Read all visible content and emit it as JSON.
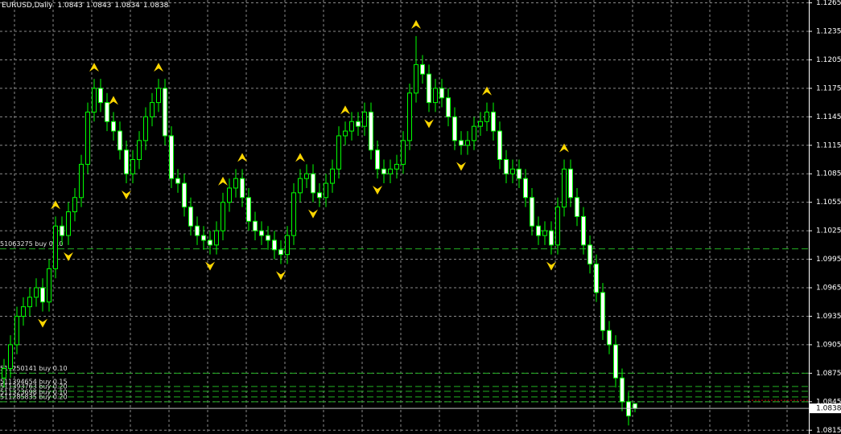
{
  "chart_data": {
    "type": "candlestick",
    "title": "EURUSD,Daily",
    "open": [
      1.087,
      1.088,
      1.0905,
      1.0935,
      1.0945,
      1.0955,
      1.0965,
      1.095,
      1.0985,
      1.103,
      1.102,
      1.1045,
      1.106,
      1.1095,
      1.115,
      1.1175,
      1.116,
      1.114,
      1.113,
      1.111,
      1.1085,
      1.11,
      1.112,
      1.1145,
      1.116,
      1.1175,
      1.1125,
      1.108,
      1.1075,
      1.105,
      1.103,
      1.102,
      1.1015,
      1.101,
      1.1025,
      1.1055,
      1.107,
      1.108,
      1.106,
      1.1035,
      1.1025,
      1.102,
      1.1015,
      1.1005,
      1.1,
      1.102,
      1.1065,
      1.108,
      1.1085,
      1.1065,
      1.106,
      1.1075,
      1.109,
      1.1125,
      1.113,
      1.114,
      1.1135,
      1.115,
      1.111,
      1.109,
      1.1085,
      1.109,
      1.1095,
      1.112,
      1.117,
      1.12,
      1.119,
      1.116,
      1.1175,
      1.1165,
      1.1145,
      1.112,
      1.1115,
      1.112,
      1.1135,
      1.114,
      1.115,
      1.113,
      1.11,
      1.1085,
      1.109,
      1.108,
      1.106,
      1.103,
      1.102,
      1.1025,
      1.101,
      1.105,
      1.109,
      1.106,
      1.104,
      1.101,
      1.099,
      1.096,
      1.092,
      1.0905,
      1.087,
      1.0845,
      1.0843
    ],
    "high": [
      1.089,
      1.0915,
      1.0945,
      1.0955,
      1.0965,
      1.0975,
      1.0975,
      1.0995,
      1.104,
      1.104,
      1.1055,
      1.107,
      1.1105,
      1.116,
      1.1185,
      1.1185,
      1.117,
      1.115,
      1.114,
      1.112,
      1.111,
      1.113,
      1.1155,
      1.117,
      1.1185,
      1.1185,
      1.1135,
      1.109,
      1.1085,
      1.106,
      1.104,
      1.103,
      1.1025,
      1.1035,
      1.1065,
      1.108,
      1.109,
      1.109,
      1.107,
      1.1045,
      1.1035,
      1.103,
      1.1025,
      1.1015,
      1.103,
      1.1075,
      1.109,
      1.1095,
      1.1095,
      1.1075,
      1.1085,
      1.11,
      1.1135,
      1.114,
      1.115,
      1.115,
      1.116,
      1.116,
      1.112,
      1.11,
      1.11,
      1.1105,
      1.113,
      1.118,
      1.123,
      1.121,
      1.12,
      1.1185,
      1.1185,
      1.1175,
      1.1155,
      1.113,
      1.113,
      1.1145,
      1.115,
      1.116,
      1.116,
      1.114,
      1.111,
      1.11,
      1.11,
      1.109,
      1.107,
      1.104,
      1.1035,
      1.1035,
      1.106,
      1.11,
      1.11,
      1.107,
      1.105,
      1.102,
      1.1,
      1.097,
      1.093,
      1.0915,
      1.088,
      1.0855,
      1.0843
    ],
    "low": [
      1.086,
      1.087,
      1.0895,
      1.0925,
      1.0935,
      1.0945,
      1.094,
      1.094,
      1.0975,
      1.101,
      1.101,
      1.1035,
      1.105,
      1.1085,
      1.114,
      1.115,
      1.113,
      1.112,
      1.11,
      1.1075,
      1.1075,
      1.109,
      1.111,
      1.1135,
      1.115,
      1.1115,
      1.107,
      1.1065,
      1.104,
      1.102,
      1.101,
      1.1005,
      1.1,
      1.1,
      1.1015,
      1.1045,
      1.106,
      1.105,
      1.1025,
      1.1015,
      1.101,
      1.1005,
      1.0995,
      1.099,
      1.099,
      1.101,
      1.1055,
      1.107,
      1.1055,
      1.105,
      1.105,
      1.1065,
      1.108,
      1.1115,
      1.112,
      1.1125,
      1.1125,
      1.11,
      1.108,
      1.1075,
      1.1075,
      1.108,
      1.1085,
      1.111,
      1.116,
      1.118,
      1.115,
      1.115,
      1.1155,
      1.1135,
      1.111,
      1.1105,
      1.1105,
      1.111,
      1.1125,
      1.113,
      1.112,
      1.109,
      1.1075,
      1.1075,
      1.107,
      1.105,
      1.102,
      1.101,
      1.101,
      1.1,
      1.1,
      1.104,
      1.105,
      1.103,
      1.1,
      1.098,
      1.095,
      1.091,
      1.0895,
      1.086,
      1.0835,
      1.082,
      1.0834
    ],
    "close": [
      1.088,
      1.0905,
      1.0935,
      1.0945,
      1.0955,
      1.0965,
      1.095,
      1.0985,
      1.103,
      1.102,
      1.1045,
      1.106,
      1.1095,
      1.115,
      1.1175,
      1.116,
      1.114,
      1.113,
      1.111,
      1.1085,
      1.11,
      1.112,
      1.1145,
      1.116,
      1.1175,
      1.1125,
      1.108,
      1.1075,
      1.105,
      1.103,
      1.102,
      1.1015,
      1.101,
      1.1025,
      1.1055,
      1.107,
      1.108,
      1.106,
      1.1035,
      1.1025,
      1.102,
      1.1015,
      1.1005,
      1.1,
      1.102,
      1.1065,
      1.108,
      1.1085,
      1.1065,
      1.106,
      1.1075,
      1.109,
      1.1125,
      1.113,
      1.114,
      1.1135,
      1.115,
      1.111,
      1.109,
      1.1085,
      1.109,
      1.1095,
      1.112,
      1.117,
      1.12,
      1.119,
      1.116,
      1.1175,
      1.1165,
      1.1145,
      1.112,
      1.1115,
      1.112,
      1.1135,
      1.114,
      1.115,
      1.113,
      1.11,
      1.1085,
      1.109,
      1.108,
      1.106,
      1.103,
      1.102,
      1.1025,
      1.101,
      1.105,
      1.109,
      1.106,
      1.104,
      1.101,
      1.099,
      1.096,
      1.092,
      1.0905,
      1.087,
      1.0845,
      1.083,
      1.0838
    ],
    "fractals": {
      "up": [
        8,
        14,
        17,
        24,
        34,
        37,
        46,
        53,
        64,
        75,
        87
      ],
      "down": [
        6,
        10,
        19,
        32,
        43,
        48,
        58,
        66,
        71,
        85
      ],
      "color": "#ffd700"
    },
    "orders": [
      {
        "label": "51063275 buy 0.10",
        "price": 1.1006
      },
      {
        "label": "511250141 buy 0.10",
        "price": 1.0875
      },
      {
        "label": "511394654 buy 0.15",
        "price": 1.0861
      },
      {
        "label": "511393763 buy 0.20",
        "price": 1.0856
      },
      {
        "label": "511323698 buy 0.10",
        "price": 1.085
      },
      {
        "label": "511285835 buy 0.20",
        "price": 1.0845
      }
    ],
    "order_color": "#22b022",
    "up_color": "#000000",
    "down_color": "#ffffff",
    "wick_color": "#00ff00",
    "bid_color": "#c0c0c0",
    "ylim": [
      1.0811,
      1.1268
    ],
    "yticks": [
      1.1265,
      1.1235,
      1.1205,
      1.1175,
      1.1145,
      1.1115,
      1.1085,
      1.1055,
      1.1025,
      1.0995,
      1.0965,
      1.0935,
      1.0905,
      1.0875,
      1.0845,
      1.0815
    ],
    "grid": true
  }
}
